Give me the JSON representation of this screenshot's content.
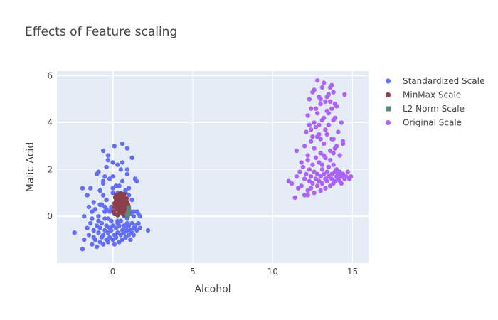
{
  "chart_data": {
    "type": "scatter",
    "title": "Effects of Feature scaling",
    "xlabel": "Alcohol",
    "ylabel": "Malic Acid",
    "xlim": [
      -3.5,
      16
    ],
    "ylim": [
      -2,
      6.2
    ],
    "x_ticks": [
      0,
      5,
      10,
      15
    ],
    "y_ticks": [
      0,
      2,
      4,
      6
    ],
    "x_tick_labels": [
      "0",
      "5",
      "10",
      "15"
    ],
    "y_tick_labels": [
      "0",
      "2",
      "4",
      "6"
    ],
    "grid": true,
    "legend_position": "top-right",
    "colors": {
      "plot_bg": "#e5ecf6",
      "grid": "#ffffff"
    },
    "series": [
      {
        "name": "Standardized Scale",
        "color": "#636efa",
        "x": [
          -2.4,
          -1.9,
          -1.8,
          -1.6,
          -1.5,
          -1.4,
          -1.3,
          -1.2,
          -1.2,
          -1.1,
          -1.0,
          -1.0,
          -0.9,
          -0.9,
          -0.8,
          -0.8,
          -0.7,
          -0.7,
          -0.6,
          -0.6,
          -0.5,
          -0.5,
          -0.4,
          -0.4,
          -0.3,
          -0.3,
          -0.2,
          -0.2,
          -0.1,
          -0.1,
          0.0,
          0.0,
          0.1,
          0.1,
          0.2,
          0.2,
          0.3,
          0.3,
          0.4,
          0.4,
          0.5,
          0.5,
          0.6,
          0.6,
          0.7,
          0.7,
          0.8,
          0.8,
          0.9,
          0.9,
          1.0,
          1.0,
          1.1,
          1.1,
          1.2,
          1.2,
          1.3,
          1.3,
          1.4,
          1.5,
          1.6,
          1.7,
          2.2,
          -1.8,
          -1.5,
          -1.3,
          -1.1,
          -0.9,
          -0.7,
          -0.5,
          -0.3,
          -0.1,
          0.1,
          0.3,
          0.5,
          0.7,
          0.9,
          1.1,
          1.3,
          1.6,
          -1.6,
          -1.2,
          -0.8,
          -0.4,
          0.0,
          0.4,
          0.8,
          1.2,
          -1.0,
          -0.6,
          -0.2,
          0.2,
          0.6,
          1.0,
          1.4,
          -0.5,
          0.0,
          0.5,
          1.0,
          1.5,
          -0.9,
          -0.3,
          0.3,
          0.9,
          -0.6,
          0.0,
          0.6,
          1.2,
          -0.3,
          0.4,
          0.9,
          -1.4,
          -0.8,
          -0.2,
          0.4,
          1.0,
          -1.9,
          -1.1,
          -0.5,
          0.1,
          0.7,
          1.3,
          -0.7,
          -0.1,
          0.5,
          1.1,
          1.7,
          -1.3,
          -0.6,
          0.2,
          0.8,
          1.5,
          -0.4,
          0.3,
          0.8,
          0.0,
          -0.6,
          0.9,
          0.1,
          -0.4,
          0.6
        ],
        "y": [
          -0.7,
          -1.4,
          -1.0,
          -0.5,
          -0.8,
          -0.3,
          -1.2,
          -0.9,
          -0.6,
          -1.0,
          -0.4,
          -1.3,
          -0.7,
          -0.2,
          -1.1,
          -0.5,
          -0.9,
          -0.3,
          -0.8,
          -1.2,
          -0.6,
          -0.1,
          -1.0,
          -0.4,
          -0.7,
          -1.1,
          -0.5,
          -0.9,
          -0.2,
          -0.6,
          -1.0,
          -0.4,
          -0.8,
          -1.2,
          -0.5,
          -0.9,
          -0.3,
          -0.7,
          -1.1,
          -0.4,
          -0.8,
          -0.2,
          -0.6,
          -1.0,
          -0.4,
          -0.7,
          -0.5,
          -0.9,
          -0.3,
          -0.6,
          -0.8,
          -0.4,
          -0.6,
          -1.0,
          -0.3,
          -0.7,
          -0.5,
          -0.8,
          -0.4,
          -0.6,
          -0.3,
          -0.5,
          -0.6,
          0.0,
          0.4,
          -0.1,
          0.3,
          0.0,
          0.5,
          0.2,
          -0.1,
          0.4,
          0.1,
          -0.2,
          0.3,
          0.0,
          -0.1,
          0.2,
          0.0,
          0.1,
          0.9,
          0.6,
          1.1,
          0.7,
          1.2,
          0.8,
          1.0,
          0.7,
          1.8,
          1.4,
          1.6,
          1.3,
          1.5,
          1.2,
          1.6,
          1.7,
          1.0,
          2.0,
          0.9,
          1.5,
          1.9,
          2.6,
          2.2,
          1.8,
          2.8,
          2.3,
          3.1,
          2.5,
          2.4,
          1.3,
          2.0,
          1.2,
          0.5,
          0.2,
          0.6,
          0.1,
          1.2,
          0.3,
          0.4,
          0.1,
          0.8,
          0.2,
          0.5,
          0.3,
          0.6,
          0.1,
          0.0,
          0.2,
          0.9,
          0.4,
          0.0,
          0.2,
          0.3,
          1.0,
          1.1,
          1.7,
          1.5,
          2.9,
          3.0,
          2.1,
          2.3
        ],
        "marker": "circle"
      },
      {
        "name": "MinMax Scale",
        "color": "#8c3f4a",
        "x": [
          0.05,
          0.1,
          0.15,
          0.2,
          0.25,
          0.3,
          0.35,
          0.4,
          0.45,
          0.5,
          0.55,
          0.6,
          0.65,
          0.7,
          0.75,
          0.8,
          0.85,
          0.9,
          0.95,
          1.0,
          0.1,
          0.2,
          0.3,
          0.4,
          0.5,
          0.6,
          0.7,
          0.8,
          0.9,
          0.15,
          0.25,
          0.35,
          0.45,
          0.55,
          0.65,
          0.75,
          0.85,
          0.95,
          0.2,
          0.3,
          0.4,
          0.5,
          0.6,
          0.7,
          0.8,
          0.9,
          0.3,
          0.4,
          0.5,
          0.6,
          0.7,
          0.8,
          0.4,
          0.5,
          0.6,
          0.7,
          0.45,
          0.55,
          0.65,
          0.5,
          0.6,
          0.35,
          0.75,
          0.25,
          0.85
        ],
        "y": [
          0.2,
          0.4,
          0.1,
          0.6,
          0.3,
          0.05,
          0.5,
          0.2,
          0.7,
          0.15,
          0.4,
          0.25,
          0.6,
          0.1,
          0.35,
          0.5,
          0.2,
          0.45,
          0.3,
          0.15,
          0.55,
          0.65,
          0.35,
          0.45,
          0.75,
          0.3,
          0.55,
          0.7,
          0.6,
          0.8,
          0.5,
          0.65,
          0.25,
          0.85,
          0.45,
          0.15,
          0.75,
          0.5,
          0.9,
          0.85,
          0.95,
          0.6,
          0.7,
          0.8,
          0.35,
          0.25,
          0.75,
          0.55,
          0.9,
          0.85,
          0.95,
          0.65,
          0.9,
          0.98,
          0.4,
          0.6,
          0.7,
          0.5,
          0.8,
          0.3,
          0.1,
          0.9,
          0.05,
          0.8,
          0.15
        ],
        "marker": "circle"
      },
      {
        "name": "L2 Norm Scale",
        "color": "#5b8a78",
        "x": [
          0.9,
          0.95,
          0.97,
          0.98,
          0.99,
          0.99,
          1.0,
          1.0,
          0.93,
          0.96,
          0.98,
          0.99,
          0.94,
          0.97,
          0.99,
          1.0,
          0.92,
          0.96
        ],
        "y": [
          0.05,
          0.1,
          0.15,
          0.2,
          0.25,
          0.3,
          0.35,
          0.38,
          0.08,
          0.12,
          0.18,
          0.22,
          0.06,
          0.14,
          0.28,
          0.33,
          0.04,
          0.16
        ],
        "marker": "square"
      },
      {
        "name": "Original Scale",
        "color": "#ab63fa",
        "x": [
          11.0,
          11.2,
          11.4,
          11.5,
          11.6,
          11.7,
          11.8,
          11.9,
          12.0,
          12.0,
          12.1,
          12.2,
          12.2,
          12.3,
          12.3,
          12.4,
          12.4,
          12.5,
          12.5,
          12.6,
          12.6,
          12.7,
          12.7,
          12.8,
          12.8,
          12.9,
          12.9,
          13.0,
          13.0,
          13.1,
          13.1,
          13.2,
          13.2,
          13.3,
          13.3,
          13.4,
          13.4,
          13.5,
          13.5,
          13.6,
          13.6,
          13.7,
          13.7,
          13.8,
          13.8,
          13.9,
          13.9,
          14.0,
          14.0,
          14.1,
          14.1,
          14.2,
          14.2,
          14.3,
          14.3,
          14.4,
          14.5,
          14.6,
          14.7,
          14.8,
          11.5,
          11.8,
          12.0,
          12.2,
          12.4,
          12.6,
          12.8,
          13.0,
          13.2,
          13.4,
          13.6,
          13.8,
          14.0,
          14.2,
          14.4,
          12.1,
          12.3,
          12.5,
          12.7,
          12.9,
          13.1,
          13.3,
          13.5,
          13.7,
          13.9,
          14.1,
          14.3,
          12.2,
          12.4,
          12.6,
          12.8,
          13.0,
          13.2,
          13.4,
          13.6,
          13.8,
          14.0,
          12.3,
          12.5,
          12.7,
          12.9,
          13.1,
          13.3,
          13.5,
          13.7,
          13.9,
          12.6,
          12.8,
          13.0,
          13.2,
          13.4,
          13.6,
          13.8,
          12.4,
          13.0,
          13.5,
          13.9,
          12.9,
          13.3,
          13.7,
          14.5,
          12.2,
          13.1,
          13.8,
          14.4,
          14.9
        ],
        "y": [
          1.5,
          1.4,
          0.8,
          1.7,
          1.2,
          1.9,
          1.3,
          2.1,
          1.6,
          0.9,
          1.8,
          1.1,
          2.4,
          1.5,
          2.0,
          1.7,
          1.2,
          2.2,
          1.4,
          1.9,
          1.0,
          1.6,
          2.5,
          1.3,
          1.8,
          2.3,
          1.5,
          1.7,
          1.1,
          2.0,
          1.4,
          1.8,
          2.6,
          1.6,
          1.2,
          1.9,
          1.5,
          2.1,
          1.7,
          1.3,
          2.4,
          1.8,
          1.6,
          1.4,
          2.2,
          1.9,
          1.5,
          1.7,
          2.0,
          1.6,
          1.8,
          1.5,
          1.9,
          1.7,
          1.4,
          1.8,
          1.6,
          1.7,
          1.9,
          1.6,
          2.8,
          2.3,
          3.0,
          2.6,
          3.2,
          2.9,
          3.4,
          2.7,
          3.1,
          3.5,
          2.8,
          3.3,
          3.0,
          2.6,
          3.2,
          3.6,
          3.9,
          3.4,
          3.8,
          3.5,
          4.1,
          3.7,
          3.9,
          3.3,
          4.2,
          3.6,
          4.0,
          4.3,
          4.6,
          4.0,
          4.4,
          4.8,
          4.2,
          4.5,
          4.9,
          4.1,
          4.7,
          5.0,
          5.3,
          4.6,
          5.1,
          5.5,
          4.9,
          5.2,
          5.6,
          4.8,
          5.4,
          5.8,
          5.0,
          5.7,
          5.1,
          5.5,
          5.3,
          3.7,
          3.3,
          4.4,
          2.9,
          3.9,
          2.5,
          4.6,
          5.2,
          0.9,
          2.2,
          2.7,
          3.1,
          1.7
        ],
        "marker": "circle"
      }
    ]
  }
}
